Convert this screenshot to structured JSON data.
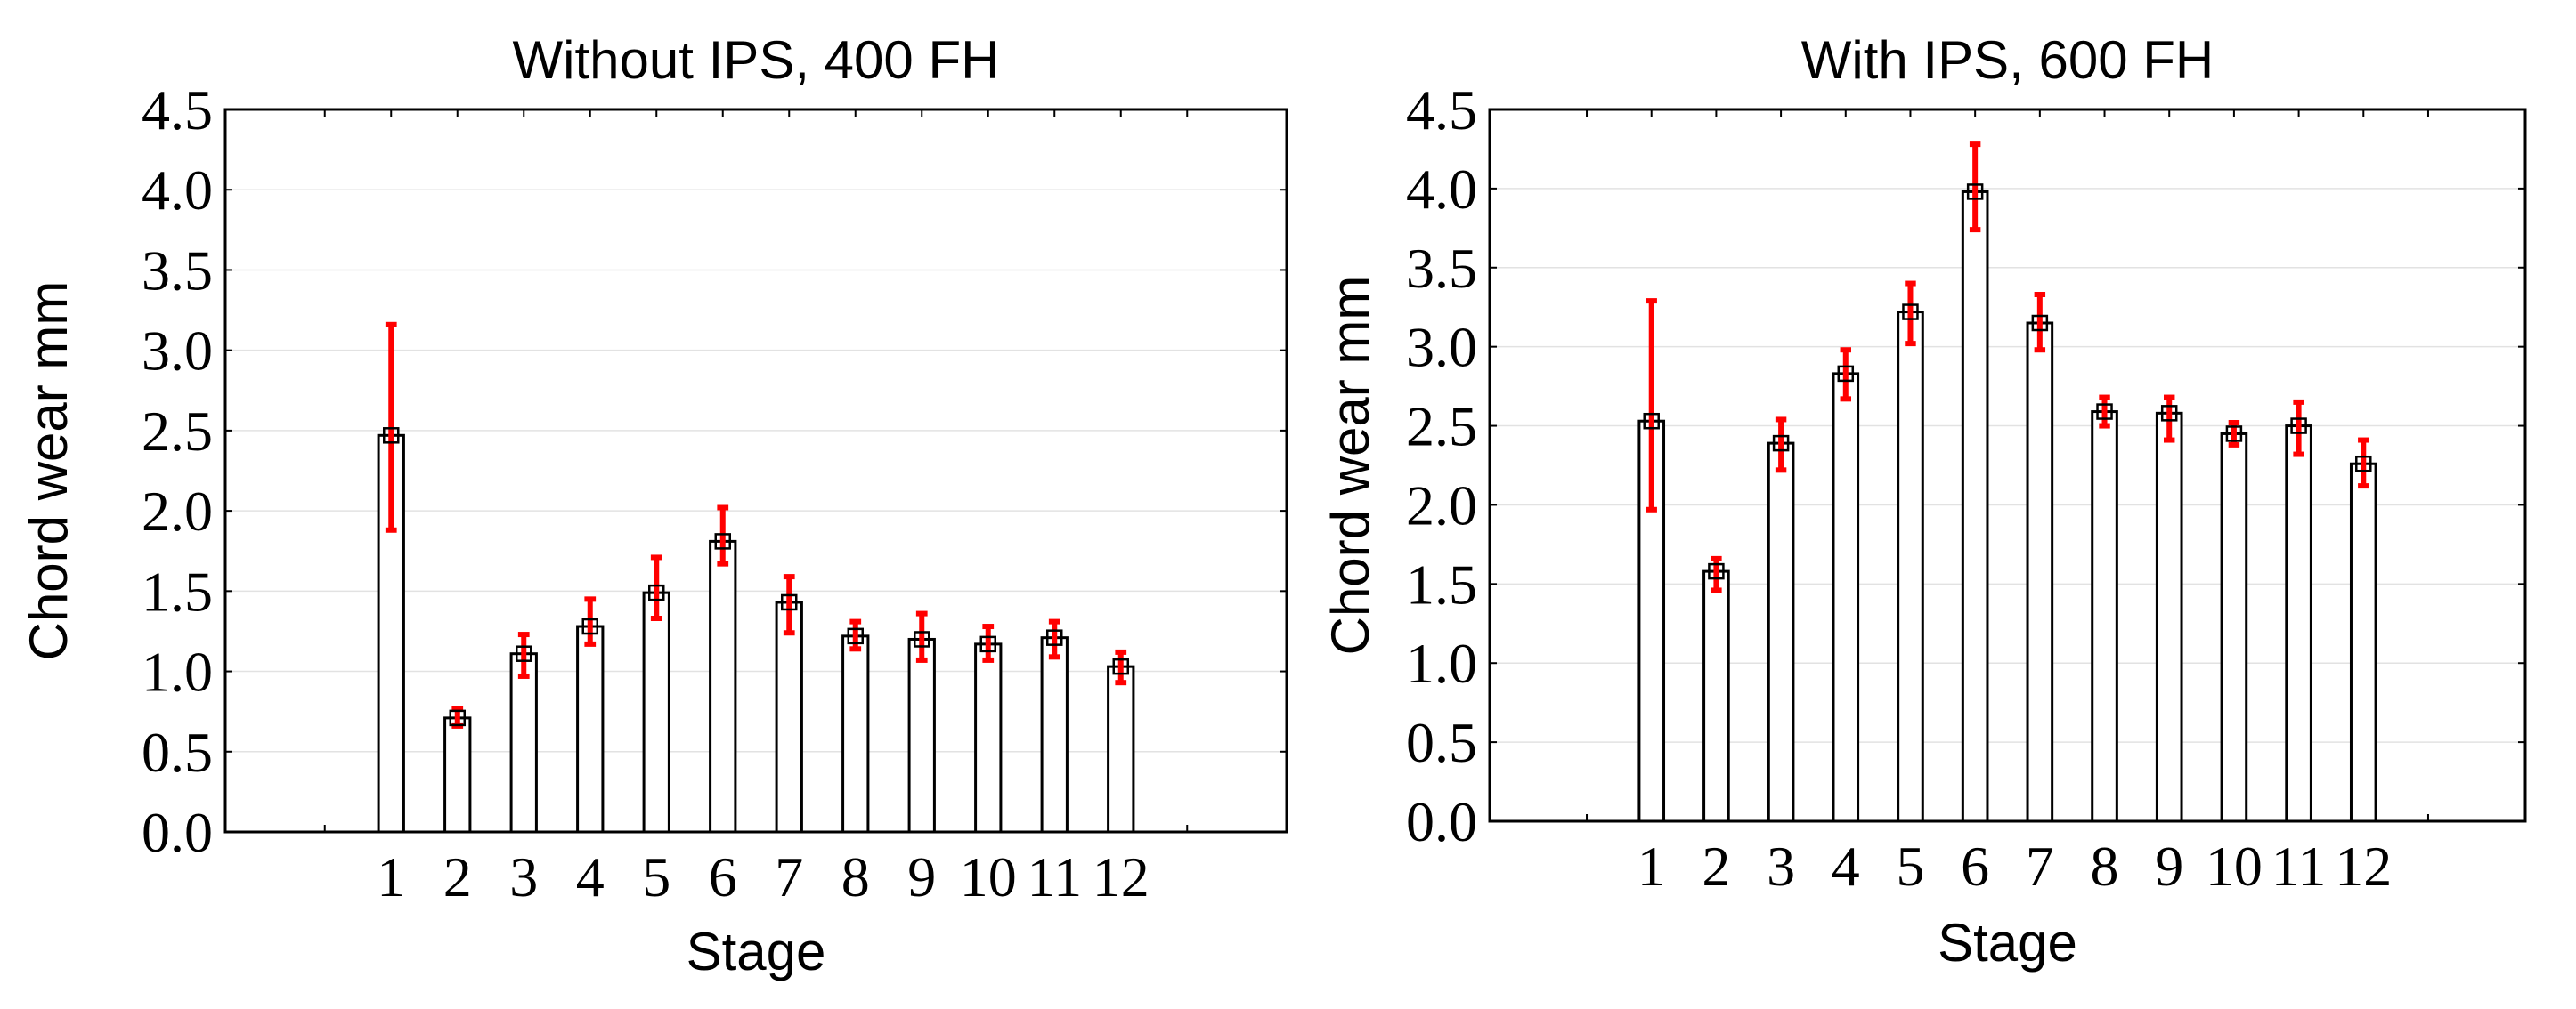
{
  "chart_data": [
    {
      "type": "bar",
      "title": "Without IPS, 400 FH",
      "xlabel": "Stage",
      "ylabel": "Chord wear mm",
      "categories": [
        "1",
        "2",
        "3",
        "4",
        "5",
        "6",
        "7",
        "8",
        "9",
        "10",
        "11",
        "12"
      ],
      "values": [
        2.47,
        0.71,
        1.11,
        1.28,
        1.49,
        1.81,
        1.43,
        1.22,
        1.2,
        1.17,
        1.21,
        1.03
      ],
      "error_low": [
        1.88,
        0.66,
        0.97,
        1.17,
        1.33,
        1.67,
        1.24,
        1.14,
        1.07,
        1.07,
        1.09,
        0.93
      ],
      "error_high": [
        3.16,
        0.77,
        1.23,
        1.45,
        1.71,
        2.02,
        1.59,
        1.31,
        1.36,
        1.28,
        1.31,
        1.12
      ],
      "y_ticks": [
        "0.0",
        "0.5",
        "1.0",
        "1.5",
        "2.0",
        "2.5",
        "3.0",
        "3.5",
        "4.0",
        "4.5"
      ],
      "ylim": [
        0,
        4.5
      ],
      "grid": true,
      "legend": "none",
      "bar_color": "#ffffff",
      "error_color": "#ff0000"
    },
    {
      "type": "bar",
      "title": "With IPS, 600 FH",
      "xlabel": "Stage",
      "ylabel": "Chord wear mm",
      "categories": [
        "1",
        "2",
        "3",
        "4",
        "5",
        "6",
        "7",
        "8",
        "9",
        "10",
        "11",
        "12"
      ],
      "values": [
        2.53,
        1.58,
        2.39,
        2.83,
        3.22,
        3.98,
        3.15,
        2.59,
        2.58,
        2.45,
        2.5,
        2.26
      ],
      "error_low": [
        1.97,
        1.46,
        2.22,
        2.67,
        3.02,
        3.74,
        2.98,
        2.5,
        2.41,
        2.38,
        2.32,
        2.12
      ],
      "error_high": [
        3.29,
        1.66,
        2.54,
        2.98,
        3.4,
        4.28,
        3.33,
        2.68,
        2.68,
        2.52,
        2.65,
        2.41
      ],
      "y_ticks": [
        "0.0",
        "0.5",
        "1.0",
        "1.5",
        "2.0",
        "2.5",
        "3.0",
        "3.5",
        "4.0",
        "4.5"
      ],
      "ylim": [
        0,
        4.5
      ],
      "grid": true,
      "legend": "none",
      "bar_color": "#ffffff",
      "error_color": "#ff0000"
    }
  ]
}
